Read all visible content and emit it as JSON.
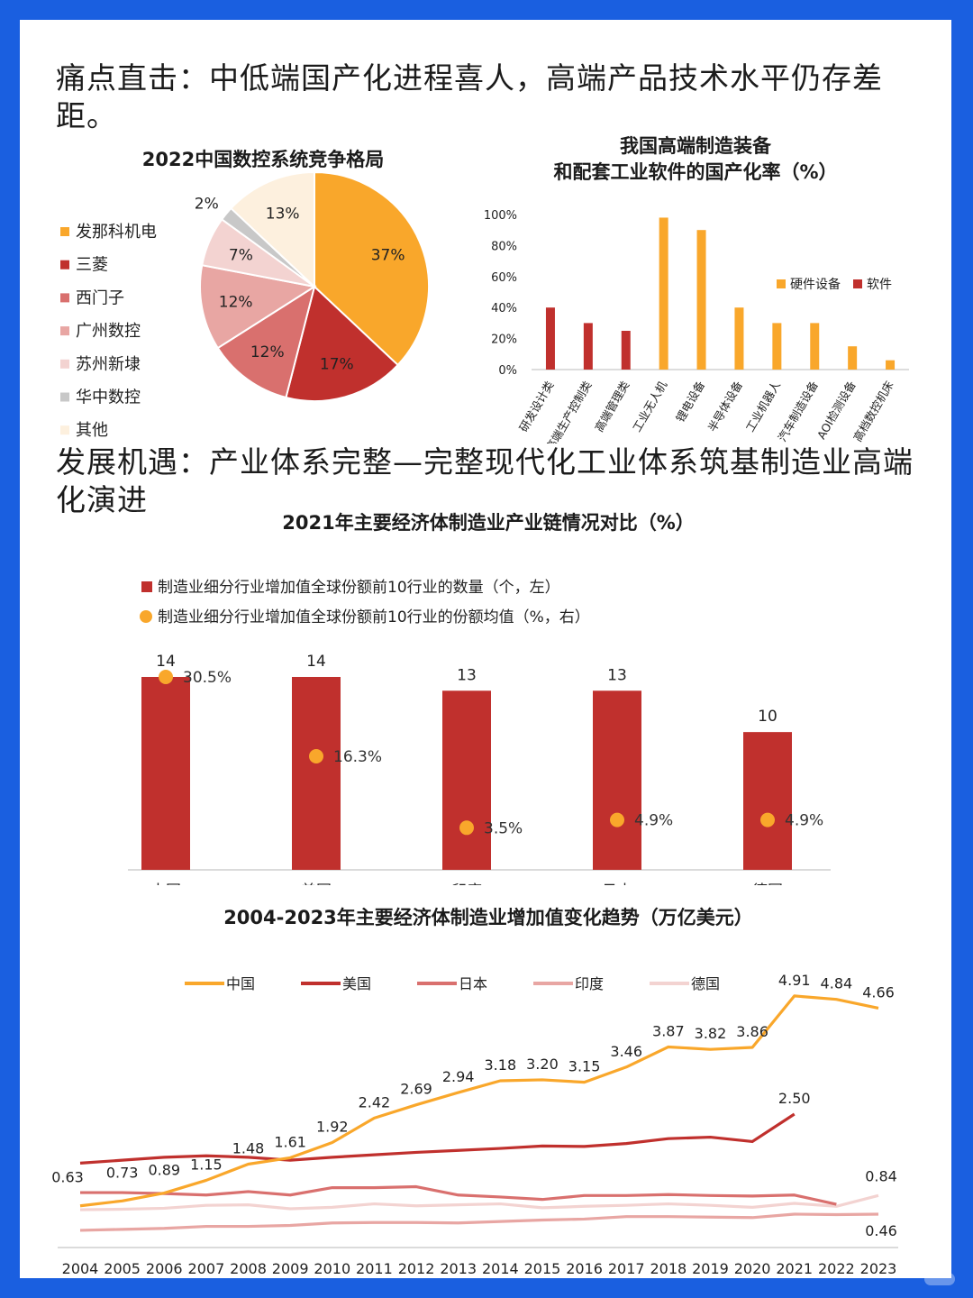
{
  "headings": {
    "h1": "痛点直击：中低端国产化进程喜人，高端产品技术水平仍存差距。",
    "h2": "发展机遇：产业体系完整—完整现代化工业体系筑基制造业高端化演进"
  },
  "colors": {
    "page_border": "#1a5fe0",
    "orange": "#f9a72b",
    "red": "#c0302d",
    "rose": "#d9706e",
    "pink": "#e8a6a3",
    "light_pink": "#f3d3d1",
    "gray": "#c8c8c8",
    "cream": "#fdf0de"
  },
  "chart_data": [
    {
      "type": "pie",
      "title": "2022中国数控系统竞争格局",
      "categories": [
        "发那科机电",
        "三菱",
        "西门子",
        "广州数控",
        "苏州新埭",
        "华中数控",
        "其他"
      ],
      "values": [
        37,
        17,
        12,
        12,
        7,
        2,
        13
      ],
      "value_labels": [
        "37%",
        "17%",
        "12%",
        "12%",
        "7%",
        "2%",
        "13%"
      ],
      "colors": [
        "#f9a72b",
        "#c0302d",
        "#d9706e",
        "#e8a6a3",
        "#f3d3d1",
        "#c8c8c8",
        "#fdf0de"
      ],
      "legend_position": "left"
    },
    {
      "type": "bar",
      "title_line1": "我国高端制造装备",
      "title_line2": "和配套工业软件的国产化率（%）",
      "categories": [
        "研发设计类",
        "高端生产控制类",
        "高端管理类",
        "工业无人机",
        "锂电设备",
        "半导体设备",
        "工业机器人",
        "汽车制造设备",
        "AOI检测设备",
        "高档数控机床"
      ],
      "series": [
        {
          "name": "硬件设备",
          "color": "#f9a72b",
          "values": [
            null,
            null,
            null,
            98,
            90,
            40,
            30,
            30,
            15,
            6
          ]
        },
        {
          "name": "软件",
          "color": "#c0302d",
          "values": [
            40,
            30,
            25,
            null,
            null,
            null,
            null,
            null,
            null,
            null
          ]
        }
      ],
      "yticks": [
        "100%",
        "80%",
        "60%",
        "40%",
        "20%",
        "0%"
      ],
      "ylim": [
        0,
        100
      ],
      "legend_position": "right"
    },
    {
      "type": "bar",
      "title": "2021年主要经济体制造业产业链情况对比（%）",
      "categories": [
        "中国",
        "美国",
        "印度",
        "日本",
        "德国"
      ],
      "series": [
        {
          "name": "制造业细分行业增加值全球份额前10行业的数量（个，左）",
          "type": "bar",
          "color": "#c0302d",
          "values": [
            14,
            14,
            13,
            13,
            10
          ],
          "labels": [
            "14",
            "14",
            "13",
            "13",
            "10"
          ]
        },
        {
          "name": "制造业细分行业增加值全球份额前10行业的份额均值（%，右）",
          "type": "scatter",
          "color": "#f9a72b",
          "values": [
            30.5,
            16.3,
            3.5,
            4.9,
            4.9
          ],
          "labels": [
            "30.5%",
            "16.3%",
            "3.5%",
            "4.9%",
            "4.9%"
          ]
        }
      ],
      "legend_position": "top"
    },
    {
      "type": "line",
      "title": "2004-2023年主要经济体制造业增加值变化趋势（万亿美元）",
      "x": [
        "2004",
        "2005",
        "2006",
        "2007",
        "2008",
        "2009",
        "2010",
        "2011",
        "2012",
        "2013",
        "2014",
        "2015",
        "2016",
        "2017",
        "2018",
        "2019",
        "2020",
        "2021",
        "2022",
        "2023"
      ],
      "series": [
        {
          "name": "中国",
          "color": "#f9a72b",
          "values": [
            0.63,
            0.73,
            0.89,
            1.15,
            1.48,
            1.61,
            1.92,
            2.42,
            2.69,
            2.94,
            3.18,
            3.2,
            3.15,
            3.46,
            3.87,
            3.82,
            3.86,
            4.91,
            4.84,
            4.66
          ],
          "labels": [
            "0.63",
            "0.73",
            "0.89",
            "1.15",
            "1.48",
            "1.61",
            "1.92",
            "2.42",
            "2.69",
            "2.94",
            "3.18",
            "3.20",
            "3.15",
            "3.46",
            "3.87",
            "3.82",
            "3.86",
            "4.91",
            "4.84",
            "4.66"
          ]
        },
        {
          "name": "美国",
          "color": "#c0302d",
          "values": [
            1.5,
            1.56,
            1.62,
            1.65,
            1.62,
            1.56,
            1.62,
            1.67,
            1.72,
            1.76,
            1.8,
            1.85,
            1.84,
            1.9,
            2.0,
            2.03,
            1.94,
            2.5,
            null,
            null
          ],
          "labels": [
            null,
            null,
            null,
            null,
            null,
            null,
            null,
            null,
            null,
            null,
            null,
            null,
            null,
            null,
            null,
            null,
            null,
            "2.50",
            null,
            null
          ]
        },
        {
          "name": "日本",
          "color": "#d9706e",
          "values": [
            0.9,
            0.9,
            0.88,
            0.85,
            0.92,
            0.85,
            1.0,
            1.0,
            1.02,
            0.85,
            0.81,
            0.76,
            0.84,
            0.84,
            0.86,
            0.84,
            0.83,
            0.85,
            0.66,
            null
          ],
          "labels": [
            null,
            null,
            null,
            null,
            null,
            null,
            null,
            null,
            null,
            null,
            null,
            null,
            null,
            null,
            null,
            null,
            null,
            null,
            null,
            null
          ]
        },
        {
          "name": "印度",
          "color": "#e8a6a3",
          "values": [
            0.13,
            0.15,
            0.17,
            0.21,
            0.21,
            0.23,
            0.28,
            0.29,
            0.29,
            0.28,
            0.31,
            0.34,
            0.36,
            0.41,
            0.41,
            0.4,
            0.39,
            0.46,
            0.45,
            0.46
          ],
          "labels": [
            null,
            null,
            null,
            null,
            null,
            null,
            null,
            null,
            null,
            null,
            null,
            null,
            null,
            null,
            null,
            null,
            null,
            null,
            null,
            "0.46"
          ]
        },
        {
          "name": "德国",
          "color": "#f3d3d1",
          "values": [
            0.55,
            0.56,
            0.58,
            0.64,
            0.65,
            0.57,
            0.6,
            0.67,
            0.63,
            0.65,
            0.67,
            0.59,
            0.62,
            0.64,
            0.67,
            0.64,
            0.6,
            0.68,
            0.62,
            0.84
          ],
          "labels": [
            null,
            null,
            null,
            null,
            null,
            null,
            null,
            null,
            null,
            null,
            null,
            null,
            null,
            null,
            null,
            null,
            null,
            null,
            null,
            "0.84"
          ]
        }
      ],
      "legend_position": "top"
    }
  ]
}
